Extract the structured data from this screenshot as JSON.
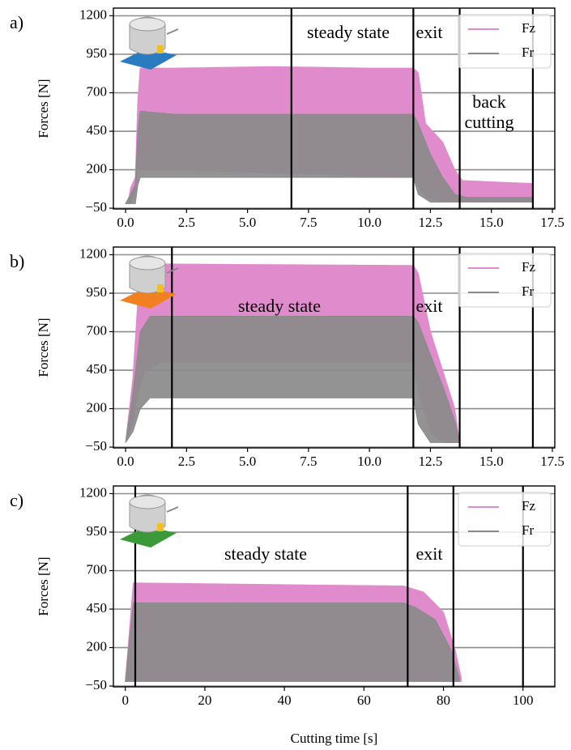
{
  "chart_data": [
    {
      "type": "area",
      "label": "a)",
      "y_label": "Forces [N]",
      "xlim": [
        -0.5,
        17.6
      ],
      "ylim": [
        -55,
        1250
      ],
      "xticks": [
        {
          "value": 0,
          "label": "0.0"
        },
        {
          "value": 2.5,
          "label": "2.5"
        },
        {
          "value": 5,
          "label": "5.0"
        },
        {
          "value": 7.5,
          "label": "7.5"
        },
        {
          "value": 10,
          "label": "10.0"
        },
        {
          "value": 12.5,
          "label": "12.5"
        },
        {
          "value": 15,
          "label": "15.0"
        },
        {
          "value": 17.5,
          "label": "17.5"
        }
      ],
      "yticks": [
        {
          "value": -50,
          "label": "−50"
        },
        200,
        450,
        700,
        950,
        1200
      ],
      "grid": true,
      "legend": "upper right",
      "vlines": [
        6.8,
        11.8,
        13.7,
        16.7
      ],
      "annotations": [
        "steady state",
        "exit",
        "back",
        "cutting"
      ],
      "plate_color": "#2a7bc0",
      "series": [
        {
          "name": "Fz",
          "color": "#e08ccc",
          "x": [
            0,
            0.1,
            0.2,
            0.4,
            0.5,
            0.6,
            2,
            6,
            10,
            11.8,
            12,
            12.3,
            13,
            13.5,
            13.8,
            16.7
          ],
          "values": [
            -20,
            -20,
            80,
            150,
            650,
            860,
            860,
            870,
            860,
            860,
            830,
            500,
            380,
            200,
            130,
            110
          ],
          "lower": [
            -20,
            -20,
            -20,
            50,
            200,
            200,
            200,
            180,
            160,
            150,
            100,
            20,
            -10,
            -10,
            -10,
            -10
          ]
        },
        {
          "name": "Fr",
          "color": "#8a8a8a",
          "x": [
            0,
            0.4,
            0.5,
            0.6,
            2,
            11.8,
            12,
            12.5,
            13,
            13.5,
            14,
            16.7
          ],
          "values": [
            -20,
            100,
            450,
            580,
            560,
            560,
            500,
            300,
            150,
            40,
            20,
            20
          ],
          "lower": [
            -20,
            -20,
            100,
            150,
            150,
            150,
            40,
            -10,
            -10,
            -10,
            -10,
            -10
          ]
        }
      ]
    },
    {
      "type": "area",
      "label": "b)",
      "y_label": "Forces [N]",
      "xlim": [
        -0.5,
        17.6
      ],
      "ylim": [
        -55,
        1250
      ],
      "xticks": [
        {
          "value": 0,
          "label": "0.0"
        },
        {
          "value": 2.5,
          "label": "2.5"
        },
        {
          "value": 5,
          "label": "5.0"
        },
        {
          "value": 7.5,
          "label": "7.5"
        },
        {
          "value": 10,
          "label": "10.0"
        },
        {
          "value": 12.5,
          "label": "12.5"
        },
        {
          "value": 15,
          "label": "15.0"
        },
        {
          "value": 17.5,
          "label": "17.5"
        }
      ],
      "yticks": [
        {
          "value": -50,
          "label": "−50"
        },
        200,
        450,
        700,
        950,
        1200
      ],
      "grid": true,
      "legend": "upper right",
      "vlines": [
        1.9,
        11.8,
        13.7,
        16.7
      ],
      "annotations": [
        "steady state",
        "exit"
      ],
      "plate_color": "#f08020",
      "series": [
        {
          "name": "Fz",
          "color": "#e08ccc",
          "x": [
            0,
            0.3,
            0.5,
            0.8,
            1.5,
            11.8,
            12,
            12.5,
            13,
            13.5,
            13.7
          ],
          "values": [
            -20,
            400,
            900,
            1100,
            1140,
            1130,
            1080,
            700,
            450,
            200,
            -20
          ],
          "lower": [
            -20,
            100,
            300,
            450,
            500,
            500,
            300,
            50,
            -20,
            -20,
            -20
          ]
        },
        {
          "name": "Fr",
          "color": "#8a8a8a",
          "x": [
            0,
            0.3,
            0.6,
            1,
            11.8,
            12,
            12.5,
            13,
            13.5,
            13.7
          ],
          "values": [
            -20,
            300,
            700,
            800,
            800,
            760,
            550,
            350,
            120,
            -20
          ],
          "lower": [
            -20,
            50,
            200,
            270,
            270,
            100,
            -20,
            -20,
            -20,
            -20
          ]
        }
      ]
    },
    {
      "type": "area",
      "label": "c)",
      "y_label": "Forces [N]",
      "x_label": "Cutting time [s]",
      "xlim": [
        -3,
        108
      ],
      "ylim": [
        -55,
        1250
      ],
      "xticks": [
        0,
        20,
        40,
        60,
        80,
        100
      ],
      "yticks": [
        {
          "value": -50,
          "label": "−50"
        },
        200,
        450,
        700,
        950,
        1200
      ],
      "grid": true,
      "legend": "upper right",
      "vlines": [
        2.5,
        71,
        82.5,
        100
      ],
      "annotations": [
        "steady state",
        "exit"
      ],
      "plate_color": "#3a9a3a",
      "series": [
        {
          "name": "Fz",
          "color": "#e08ccc",
          "x": [
            0,
            2,
            70,
            75,
            80,
            83,
            84.5
          ],
          "values": [
            -20,
            620,
            600,
            560,
            430,
            180,
            0
          ],
          "lower": [
            -20,
            -20,
            -20,
            -20,
            -20,
            -20,
            -20
          ]
        },
        {
          "name": "Fr",
          "color": "#8a8a8a",
          "x": [
            0,
            2,
            70,
            73,
            78,
            82,
            84
          ],
          "values": [
            -20,
            490,
            490,
            460,
            380,
            180,
            0
          ],
          "lower": [
            -20,
            -20,
            -20,
            -20,
            -20,
            -20,
            -20
          ]
        }
      ]
    }
  ]
}
